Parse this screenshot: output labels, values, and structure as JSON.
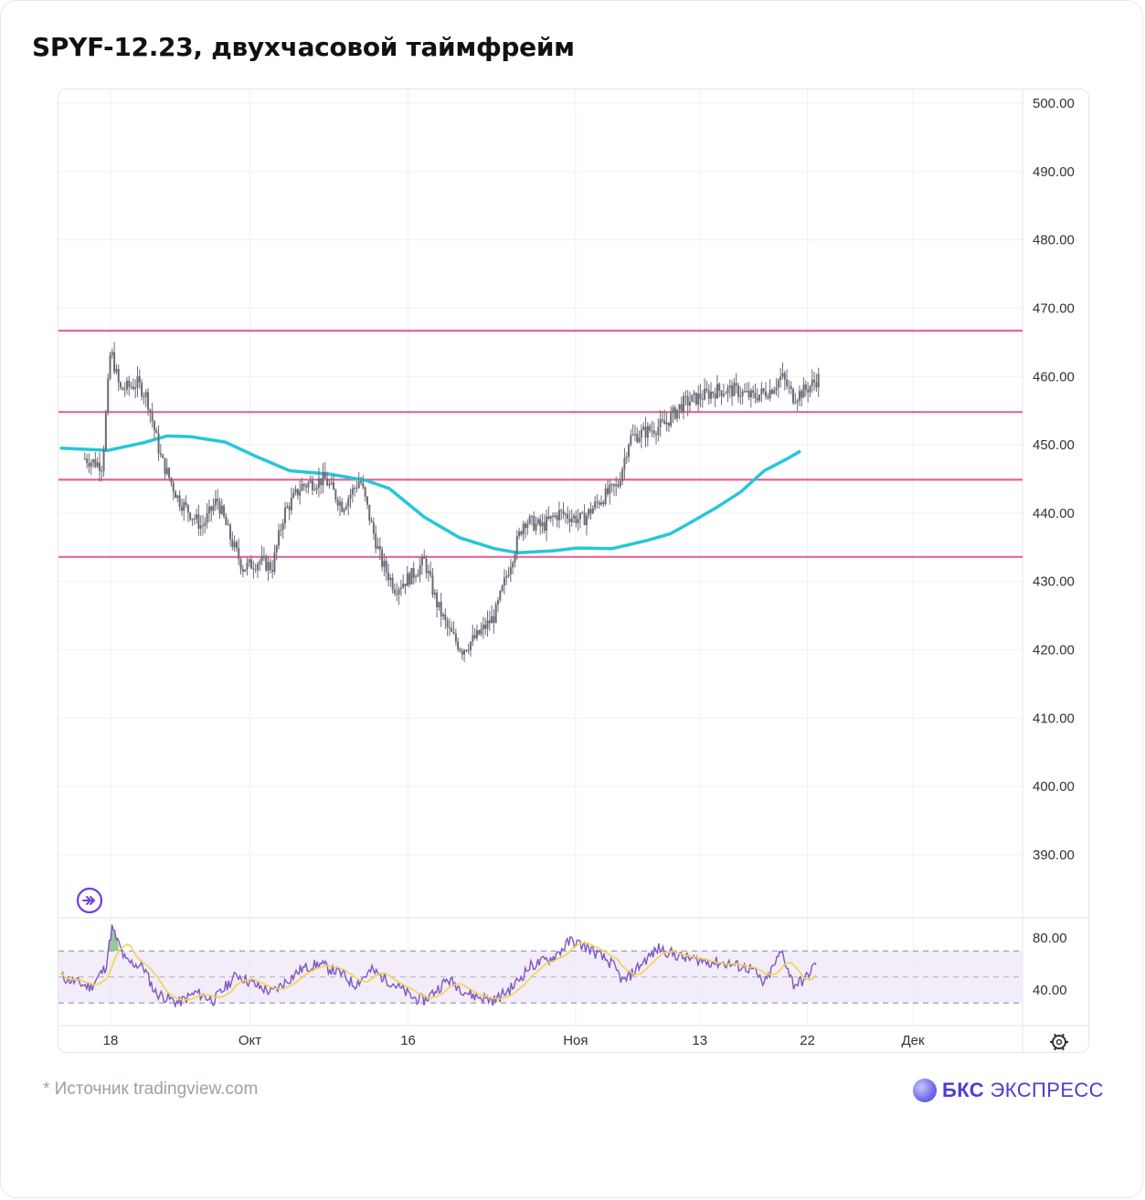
{
  "title": "SPYF-12.23, двухчасовой таймфрейм",
  "footnote": "* Источник tradingview.com",
  "brand": {
    "bold": "БКС",
    "rest": " ЭКСПРЕСС",
    "color": "#4b3fd1"
  },
  "chart_data": [
    {
      "type": "candlestick",
      "title": "SPYF-12.23, двухчасовой таймфрейм",
      "ylim": [
        380,
        502
      ],
      "y_ticks": [
        "500.00",
        "490.00",
        "480.00",
        "470.00",
        "460.00",
        "450.00",
        "440.00",
        "430.00",
        "420.00",
        "410.00",
        "400.00",
        "390.00"
      ],
      "x_ticks": [
        {
          "label": "18",
          "t": 2.2
        },
        {
          "label": "Окт",
          "t": 14.1
        },
        {
          "label": "16",
          "t": 27.6
        },
        {
          "label": "Ноя",
          "t": 41.9
        },
        {
          "label": "13",
          "t": 52.5
        },
        {
          "label": "22",
          "t": 61.7
        },
        {
          "label": "Дек",
          "t": 70.7
        }
      ],
      "x_range": [
        -2,
        78
      ],
      "price_path": [
        {
          "t": 0.0,
          "p": 448
        },
        {
          "t": 1.5,
          "p": 447
        },
        {
          "t": 2.2,
          "p": 464
        },
        {
          "t": 3.0,
          "p": 458
        },
        {
          "t": 4.5,
          "p": 459
        },
        {
          "t": 5.3,
          "p": 457
        },
        {
          "t": 6.5,
          "p": 448
        },
        {
          "t": 8.0,
          "p": 442
        },
        {
          "t": 10.0,
          "p": 438
        },
        {
          "t": 11.3,
          "p": 442
        },
        {
          "t": 12.5,
          "p": 436
        },
        {
          "t": 13.5,
          "p": 432
        },
        {
          "t": 15.0,
          "p": 433
        },
        {
          "t": 16.0,
          "p": 432
        },
        {
          "t": 17.0,
          "p": 440
        },
        {
          "t": 18.5,
          "p": 444
        },
        {
          "t": 20.5,
          "p": 445
        },
        {
          "t": 22.0,
          "p": 441
        },
        {
          "t": 23.5,
          "p": 445
        },
        {
          "t": 24.5,
          "p": 438
        },
        {
          "t": 25.3,
          "p": 433
        },
        {
          "t": 26.5,
          "p": 429
        },
        {
          "t": 28.0,
          "p": 431
        },
        {
          "t": 29.0,
          "p": 433
        },
        {
          "t": 30.0,
          "p": 427
        },
        {
          "t": 31.0,
          "p": 423
        },
        {
          "t": 32.2,
          "p": 420
        },
        {
          "t": 33.5,
          "p": 422
        },
        {
          "t": 35.0,
          "p": 425
        },
        {
          "t": 36.2,
          "p": 432
        },
        {
          "t": 37.5,
          "p": 439
        },
        {
          "t": 39.0,
          "p": 438
        },
        {
          "t": 40.5,
          "p": 440
        },
        {
          "t": 42.5,
          "p": 439
        },
        {
          "t": 44.0,
          "p": 442
        },
        {
          "t": 45.5,
          "p": 444
        },
        {
          "t": 46.5,
          "p": 451
        },
        {
          "t": 48.0,
          "p": 452
        },
        {
          "t": 49.5,
          "p": 453
        },
        {
          "t": 51.0,
          "p": 456
        },
        {
          "t": 52.5,
          "p": 457
        },
        {
          "t": 54.0,
          "p": 458
        },
        {
          "t": 55.5,
          "p": 458
        },
        {
          "t": 57.0,
          "p": 457
        },
        {
          "t": 58.5,
          "p": 458
        },
        {
          "t": 59.5,
          "p": 460
        },
        {
          "t": 60.5,
          "p": 457
        },
        {
          "t": 61.5,
          "p": 458
        },
        {
          "t": 62.8,
          "p": 460
        }
      ],
      "series": [
        {
          "type": "line",
          "color": "#26c6da",
          "points": [
            {
              "t": -2.0,
              "p": 449.5
            },
            {
              "t": 2.0,
              "p": 449.2
            },
            {
              "t": 5.0,
              "p": 450.3
            },
            {
              "t": 7.0,
              "p": 451.3
            },
            {
              "t": 9.0,
              "p": 451.2
            },
            {
              "t": 12.0,
              "p": 450.4
            },
            {
              "t": 14.5,
              "p": 448.4
            },
            {
              "t": 17.5,
              "p": 446.2
            },
            {
              "t": 21.0,
              "p": 445.7
            },
            {
              "t": 24.0,
              "p": 444.8
            },
            {
              "t": 26.0,
              "p": 443.6
            },
            {
              "t": 29.0,
              "p": 439.4
            },
            {
              "t": 32.0,
              "p": 436.4
            },
            {
              "t": 35.0,
              "p": 434.8
            },
            {
              "t": 37.0,
              "p": 434.2
            },
            {
              "t": 40.0,
              "p": 434.5
            },
            {
              "t": 42.0,
              "p": 434.9
            },
            {
              "t": 45.0,
              "p": 434.8
            },
            {
              "t": 48.0,
              "p": 436.0
            },
            {
              "t": 50.0,
              "p": 437.0
            },
            {
              "t": 52.0,
              "p": 438.9
            },
            {
              "t": 54.0,
              "p": 440.9
            },
            {
              "t": 56.0,
              "p": 443.1
            },
            {
              "t": 58.0,
              "p": 446.2
            },
            {
              "t": 60.0,
              "p": 448.0
            },
            {
              "t": 61.0,
              "p": 449.0
            }
          ]
        }
      ],
      "horizontal_levels": [
        {
          "price": 466.7,
          "color": "#e8649c"
        },
        {
          "price": 454.8,
          "color": "#e8649c"
        },
        {
          "price": 444.9,
          "color": "#e8649c"
        },
        {
          "price": 433.6,
          "color": "#e8649c"
        }
      ]
    },
    {
      "type": "line",
      "indicator": "oscillator",
      "ylim": [
        27,
        96
      ],
      "y_ticks": [
        "80.00",
        "40.00"
      ],
      "band": [
        70,
        30
      ],
      "mid": 50,
      "color": "#7e57c2",
      "signal_color": "#f5d34a",
      "values_path": [
        {
          "t": -2.0,
          "p": 50
        },
        {
          "t": 0.5,
          "p": 42
        },
        {
          "t": 1.8,
          "p": 58
        },
        {
          "t": 2.3,
          "p": 88
        },
        {
          "t": 3.5,
          "p": 62
        },
        {
          "t": 5.0,
          "p": 58
        },
        {
          "t": 6.0,
          "p": 38
        },
        {
          "t": 8.0,
          "p": 30
        },
        {
          "t": 9.5,
          "p": 38
        },
        {
          "t": 11.0,
          "p": 32
        },
        {
          "t": 13.0,
          "p": 52
        },
        {
          "t": 14.5,
          "p": 44
        },
        {
          "t": 16.0,
          "p": 38
        },
        {
          "t": 18.5,
          "p": 56
        },
        {
          "t": 20.0,
          "p": 60
        },
        {
          "t": 22.0,
          "p": 52
        },
        {
          "t": 23.0,
          "p": 44
        },
        {
          "t": 24.5,
          "p": 55
        },
        {
          "t": 26.5,
          "p": 44
        },
        {
          "t": 28.0,
          "p": 34
        },
        {
          "t": 29.0,
          "p": 32
        },
        {
          "t": 31.0,
          "p": 48
        },
        {
          "t": 33.0,
          "p": 36
        },
        {
          "t": 35.0,
          "p": 32
        },
        {
          "t": 36.5,
          "p": 42
        },
        {
          "t": 38.0,
          "p": 58
        },
        {
          "t": 40.0,
          "p": 65
        },
        {
          "t": 41.5,
          "p": 78
        },
        {
          "t": 43.0,
          "p": 72
        },
        {
          "t": 45.0,
          "p": 60
        },
        {
          "t": 46.0,
          "p": 46
        },
        {
          "t": 47.5,
          "p": 60
        },
        {
          "t": 49.0,
          "p": 72
        },
        {
          "t": 51.0,
          "p": 65
        },
        {
          "t": 53.0,
          "p": 62
        },
        {
          "t": 55.0,
          "p": 60
        },
        {
          "t": 57.0,
          "p": 56
        },
        {
          "t": 58.0,
          "p": 44
        },
        {
          "t": 59.5,
          "p": 70
        },
        {
          "t": 60.5,
          "p": 44
        },
        {
          "t": 61.5,
          "p": 48
        },
        {
          "t": 62.5,
          "p": 62
        }
      ]
    }
  ],
  "colors": {
    "candle": "#6b6b78",
    "ma": "#26c6da",
    "levels": "#e8649c",
    "osc_line": "#7e57c2",
    "osc_signal": "#f5d34a",
    "osc_band_fill": "#ede7f6",
    "grid": "#eef0f3"
  },
  "icons": {
    "indicator_badge": "fast-forward-circle-icon",
    "settings": "settings-icon"
  }
}
